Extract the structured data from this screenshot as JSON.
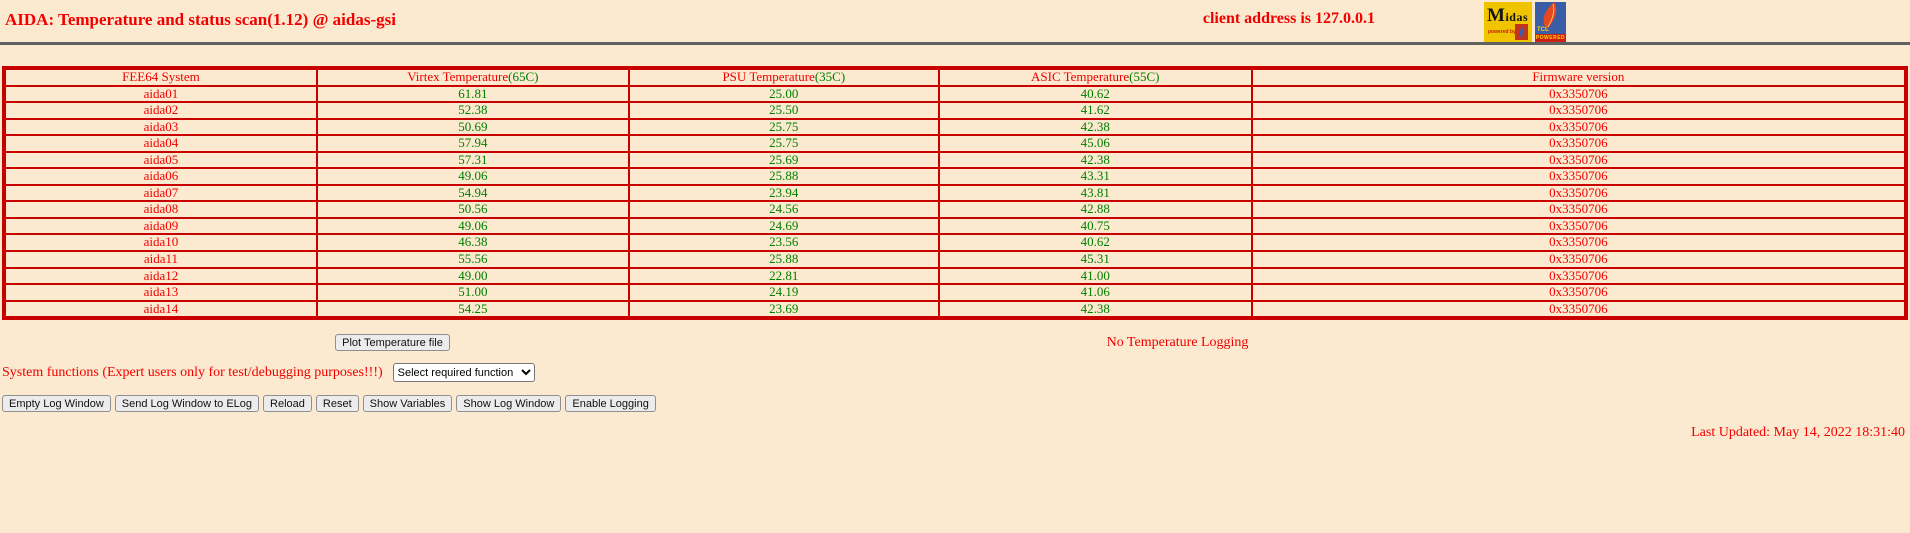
{
  "page": {
    "title": "AIDA: Temperature and status scan(1.12) @ aidas-gsi",
    "client_address": "client address is 127.0.0.1",
    "last_updated": "Last Updated: May 14, 2022 18:31:40",
    "background_color": "#fcead0",
    "accent_red": "#f20000",
    "value_green": "#008000",
    "table_border_red": "#c80000"
  },
  "logos": {
    "midas": {
      "wordmark": "Midas",
      "powered_by": "powered by"
    },
    "tcl": {
      "label": "TCL",
      "powered": "POWERED"
    }
  },
  "table": {
    "headers": [
      {
        "label": "FEE64 System",
        "threshold": ""
      },
      {
        "label": "Virtex Temperature",
        "threshold": "(65C)"
      },
      {
        "label": "PSU Temperature",
        "threshold": "(35C)"
      },
      {
        "label": "ASIC Temperature",
        "threshold": "(55C)"
      },
      {
        "label": "Firmware version",
        "threshold": ""
      }
    ],
    "rows": [
      {
        "system": "aida01",
        "virtex": "61.81",
        "psu": "25.00",
        "asic": "40.62",
        "firmware": "0x3350706"
      },
      {
        "system": "aida02",
        "virtex": "52.38",
        "psu": "25.50",
        "asic": "41.62",
        "firmware": "0x3350706"
      },
      {
        "system": "aida03",
        "virtex": "50.69",
        "psu": "25.75",
        "asic": "42.38",
        "firmware": "0x3350706"
      },
      {
        "system": "aida04",
        "virtex": "57.94",
        "psu": "25.75",
        "asic": "45.06",
        "firmware": "0x3350706"
      },
      {
        "system": "aida05",
        "virtex": "57.31",
        "psu": "25.69",
        "asic": "42.38",
        "firmware": "0x3350706"
      },
      {
        "system": "aida06",
        "virtex": "49.06",
        "psu": "25.88",
        "asic": "43.31",
        "firmware": "0x3350706"
      },
      {
        "system": "aida07",
        "virtex": "54.94",
        "psu": "23.94",
        "asic": "43.81",
        "firmware": "0x3350706"
      },
      {
        "system": "aida08",
        "virtex": "50.56",
        "psu": "24.56",
        "asic": "42.88",
        "firmware": "0x3350706"
      },
      {
        "system": "aida09",
        "virtex": "49.06",
        "psu": "24.69",
        "asic": "40.75",
        "firmware": "0x3350706"
      },
      {
        "system": "aida10",
        "virtex": "46.38",
        "psu": "23.56",
        "asic": "40.62",
        "firmware": "0x3350706"
      },
      {
        "system": "aida11",
        "virtex": "55.56",
        "psu": "25.88",
        "asic": "45.31",
        "firmware": "0x3350706"
      },
      {
        "system": "aida12",
        "virtex": "49.00",
        "psu": "22.81",
        "asic": "41.00",
        "firmware": "0x3350706"
      },
      {
        "system": "aida13",
        "virtex": "51.00",
        "psu": "24.19",
        "asic": "41.06",
        "firmware": "0x3350706"
      },
      {
        "system": "aida14",
        "virtex": "54.25",
        "psu": "23.69",
        "asic": "42.38",
        "firmware": "0x3350706"
      }
    ]
  },
  "actions": {
    "plot_button": "Plot Temperature file",
    "logging_status": "No Temperature Logging",
    "system_functions_label": "System functions (Expert users only for test/debugging purposes!!!)",
    "function_select_value": "Select required function",
    "log_buttons": [
      "Empty Log Window",
      "Send Log Window to ELog",
      "Reload",
      "Reset",
      "Show Variables",
      "Show Log Window",
      "Enable Logging"
    ]
  }
}
